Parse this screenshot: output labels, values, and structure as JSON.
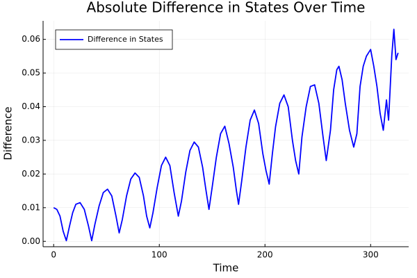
{
  "chart_data": {
    "type": "line",
    "title": "Absolute Difference in States Over Time",
    "x_label": "Time",
    "y_label": "Difference",
    "legend": "top-left",
    "grid": true,
    "xlim": [
      -10,
      336
    ],
    "ylim": [
      -0.0016,
      0.0655
    ],
    "xticks": [
      0,
      100,
      200,
      300
    ],
    "yticks": [
      {
        "value": 0,
        "label": "0.00"
      },
      0.01,
      0.02,
      0.03,
      0.04,
      0.05,
      0.06
    ],
    "x": [
      0,
      3,
      6,
      9,
      12,
      15,
      18,
      21,
      25,
      29,
      33,
      36,
      39,
      43,
      47,
      51,
      55,
      59,
      62,
      65,
      69,
      73,
      77,
      81,
      85,
      88,
      91,
      94,
      98,
      102,
      106,
      110,
      114,
      118,
      121,
      125,
      129,
      133,
      137,
      141,
      144,
      147,
      150,
      154,
      158,
      162,
      166,
      170,
      173,
      175,
      178,
      182,
      186,
      190,
      194,
      198,
      201,
      204,
      207,
      210,
      214,
      218,
      222,
      226,
      229,
      232,
      235,
      239,
      243,
      247,
      251,
      255,
      258,
      262,
      265,
      268,
      270,
      273,
      276,
      280,
      284,
      287,
      290,
      293,
      296,
      300,
      303,
      306,
      309,
      312,
      315,
      317,
      320,
      322,
      324,
      326
    ],
    "series": [
      {
        "name": "Difference in States",
        "color": "#0000ff",
        "values": [
          0.01,
          0.0095,
          0.0075,
          0.003,
          0.0002,
          0.0045,
          0.0085,
          0.011,
          0.0115,
          0.0095,
          0.0045,
          0.0002,
          0.005,
          0.0105,
          0.0145,
          0.0155,
          0.0135,
          0.0075,
          0.0025,
          0.0065,
          0.0135,
          0.0185,
          0.0203,
          0.019,
          0.0135,
          0.0075,
          0.004,
          0.0085,
          0.016,
          0.0225,
          0.025,
          0.0225,
          0.0145,
          0.0075,
          0.012,
          0.0205,
          0.027,
          0.0295,
          0.028,
          0.022,
          0.0155,
          0.0095,
          0.016,
          0.025,
          0.032,
          0.0342,
          0.029,
          0.022,
          0.015,
          0.011,
          0.018,
          0.028,
          0.036,
          0.039,
          0.035,
          0.026,
          0.021,
          0.017,
          0.026,
          0.034,
          0.041,
          0.0435,
          0.04,
          0.03,
          0.024,
          0.02,
          0.031,
          0.04,
          0.046,
          0.0465,
          0.041,
          0.031,
          0.024,
          0.033,
          0.045,
          0.051,
          0.052,
          0.048,
          0.041,
          0.033,
          0.028,
          0.032,
          0.046,
          0.052,
          0.055,
          0.057,
          0.052,
          0.046,
          0.038,
          0.033,
          0.042,
          0.036,
          0.055,
          0.063,
          0.054,
          0.056
        ]
      }
    ]
  }
}
